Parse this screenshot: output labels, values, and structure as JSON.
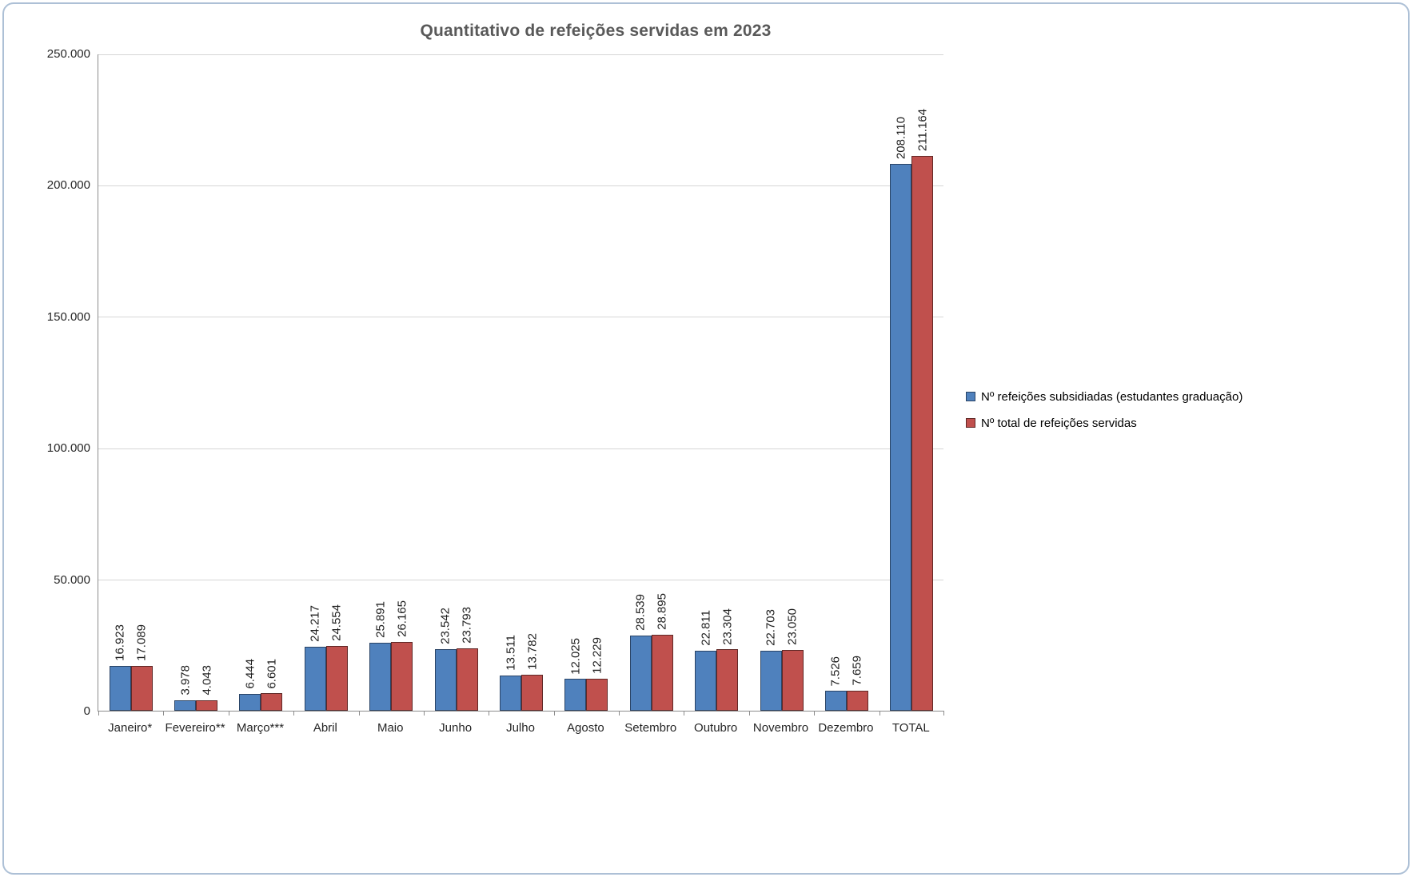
{
  "chart_data": {
    "type": "bar",
    "title": "Quantitativo de refeições servidas em 2023",
    "categories": [
      "Janeiro*",
      "Fevereiro**",
      "Março***",
      "Abril",
      "Maio",
      "Junho",
      "Julho",
      "Agosto",
      "Setembro",
      "Outubro",
      "Novembro",
      "Dezembro",
      "TOTAL"
    ],
    "series": [
      {
        "name": "Nº refeições subsidiadas (estudantes graduação)",
        "color": "#4F81BD",
        "border_color": "#2A4466",
        "values": [
          16923,
          3978,
          6444,
          24217,
          25891,
          23542,
          13511,
          12025,
          28539,
          22811,
          22703,
          7526,
          208110
        ]
      },
      {
        "name": "Nº total de refeições servidas",
        "color": "#C0504D",
        "border_color": "#602826",
        "values": [
          17089,
          4043,
          6601,
          24554,
          26165,
          23793,
          13782,
          12229,
          28895,
          23304,
          23050,
          7659,
          211164
        ]
      }
    ],
    "ylim": [
      0,
      250000
    ],
    "ytick_step": 50000,
    "ytick_labels": [
      "0",
      "50.000",
      "100.000",
      "150.000",
      "200.000",
      "250.000"
    ],
    "grid": true,
    "legend_position": "right",
    "number_format": "thousands-dot",
    "colors": {
      "gridline": "#D6D6D6",
      "axis": "#8C8C8C",
      "title": "#595959",
      "tick_label": "#262626",
      "value_label": "#1F1F1F",
      "frame_border": "#ADC0D6",
      "background": "#FFFFFF"
    }
  }
}
